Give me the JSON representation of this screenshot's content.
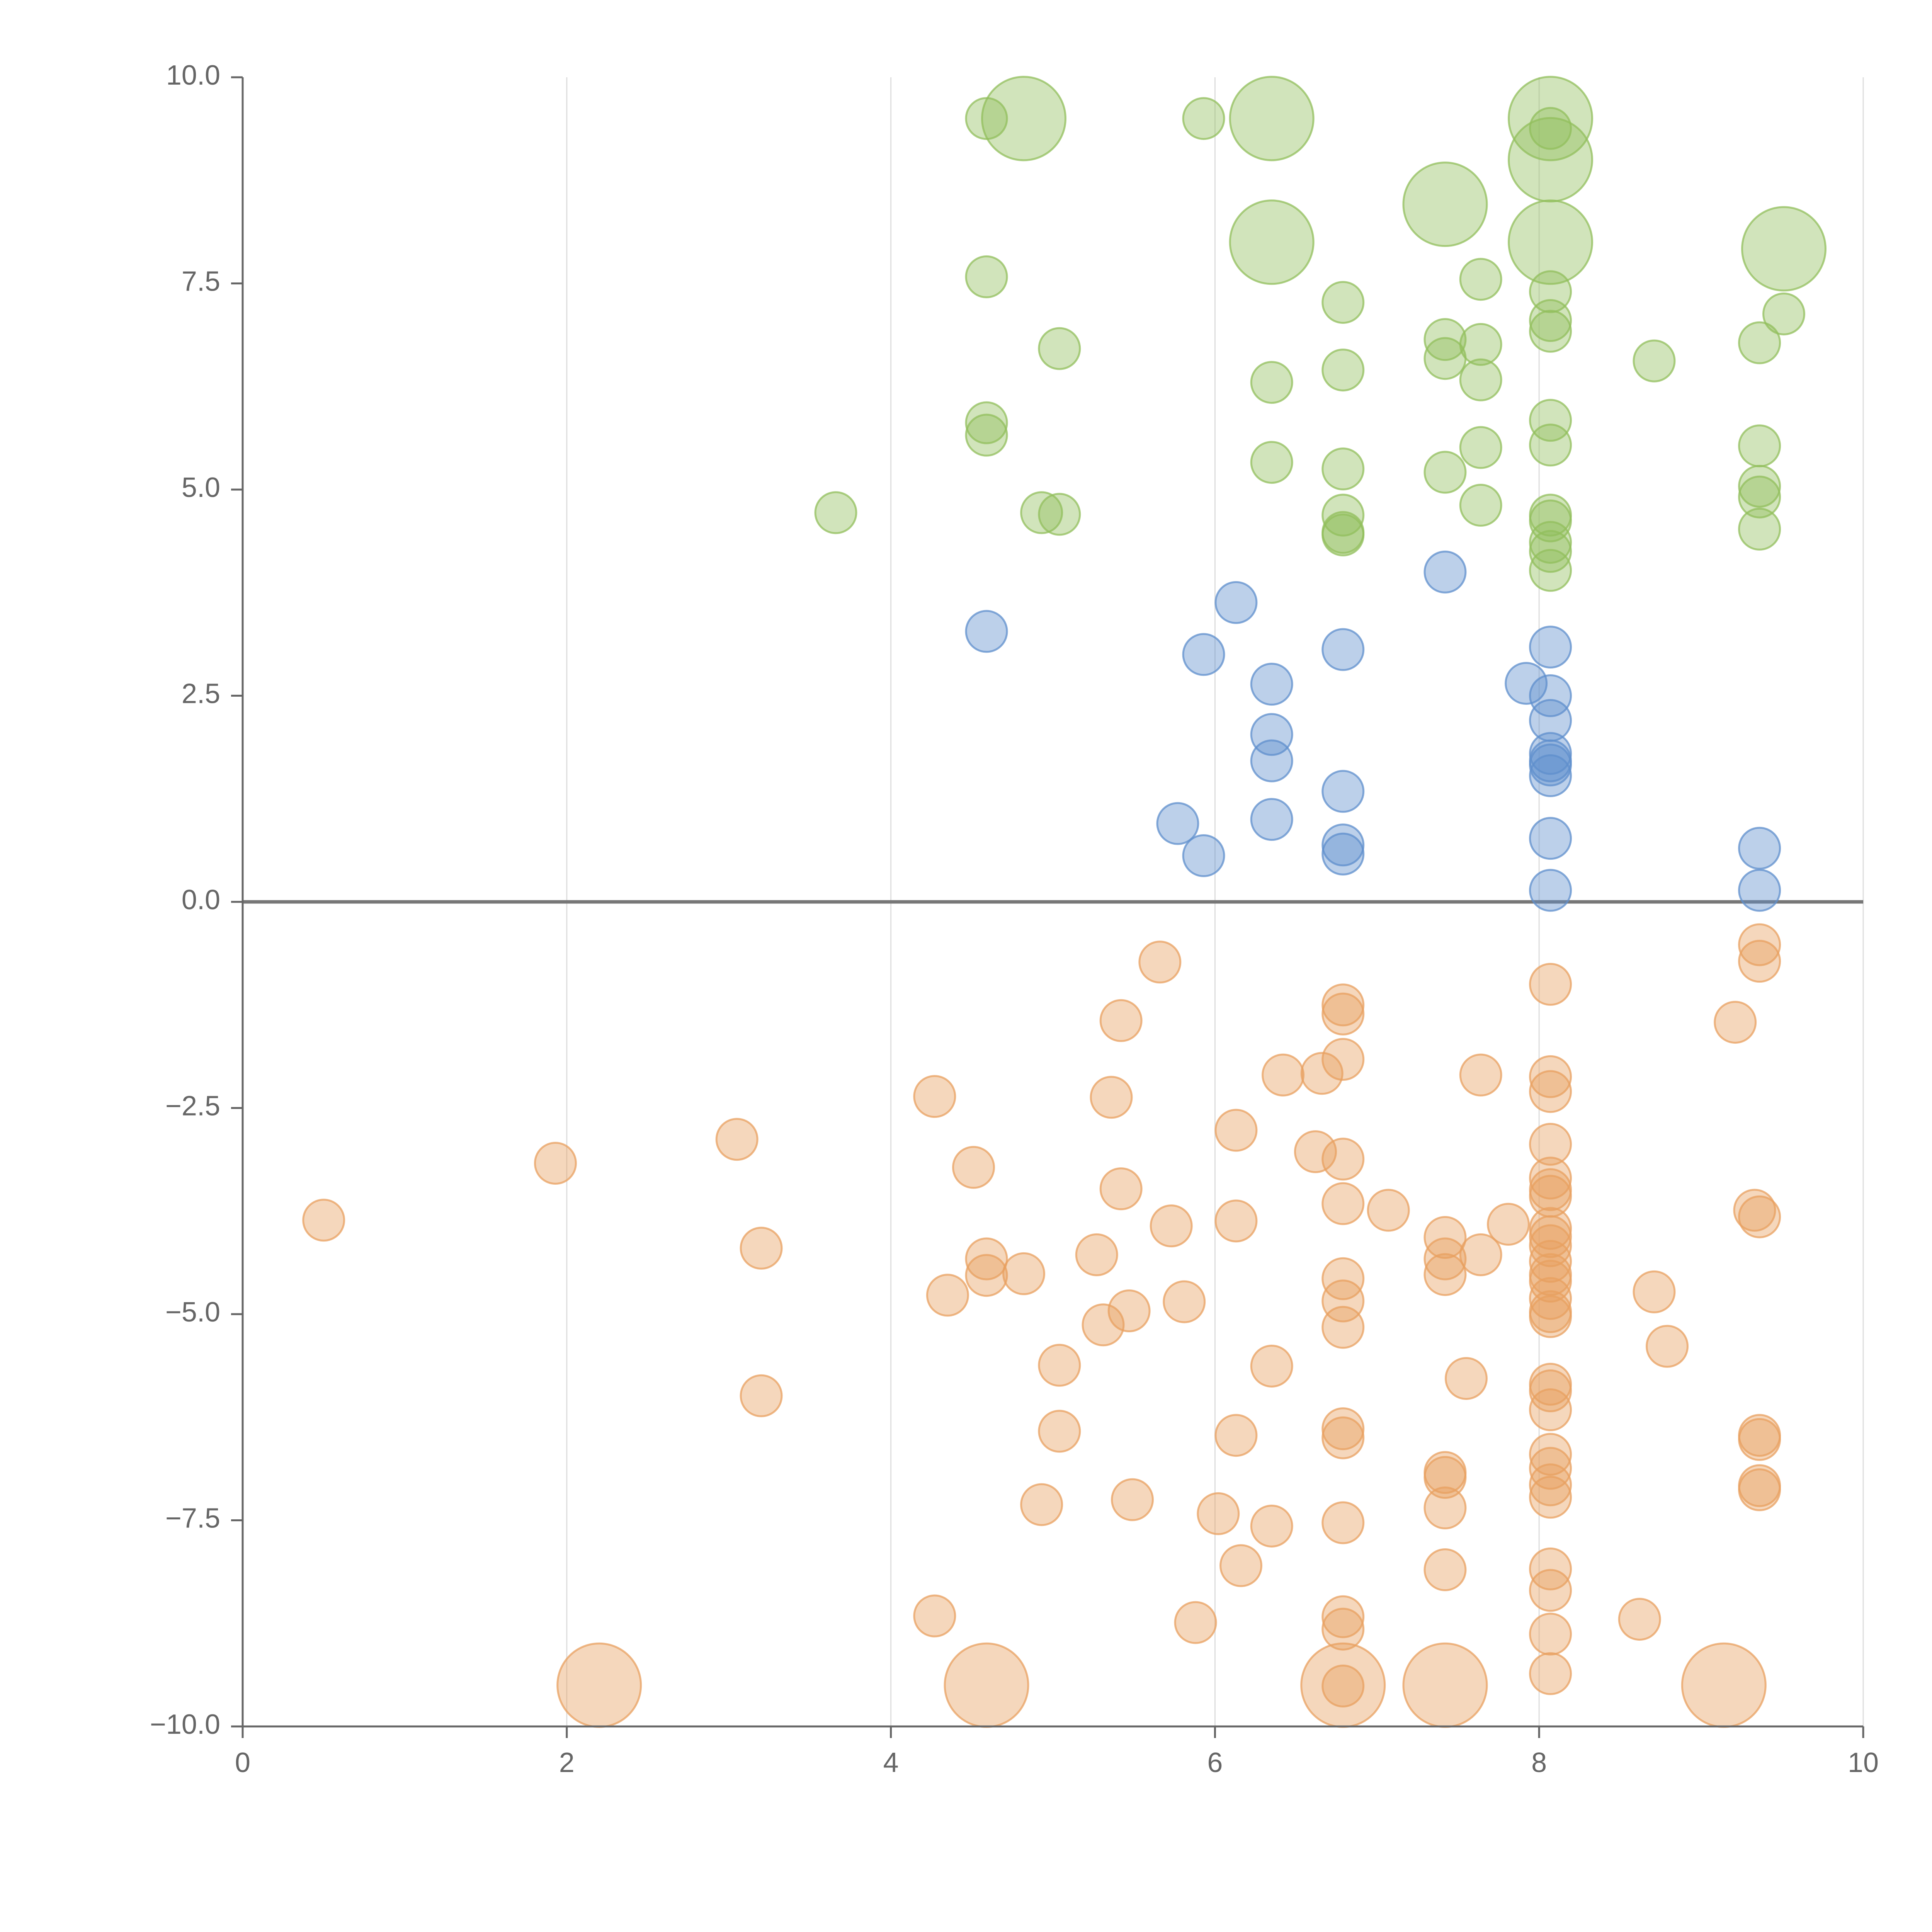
{
  "chart_data": {
    "type": "scatter",
    "title": "",
    "xlabel": "",
    "ylabel": "",
    "xlim": [
      0,
      10
    ],
    "ylim": [
      -10,
      10
    ],
    "x_ticks": [
      0,
      2,
      4,
      6,
      8,
      10
    ],
    "x_tick_labels": [
      "0",
      "2",
      "4",
      "6",
      "8",
      "10"
    ],
    "y_ticks": [
      10,
      7.5,
      5,
      2.5,
      0,
      -2.5,
      -5,
      -7.5,
      -10
    ],
    "y_tick_labels": [
      "10.0",
      "7.5",
      "5.0",
      "2.5",
      "0.0",
      "−2.5",
      "−5.0",
      "−7.5",
      "−10.0"
    ],
    "vertical_grid": true,
    "horizontal_grid": false,
    "zero_line": true,
    "colors": {
      "green": "#91bf5c",
      "blue": "#5f8fcc",
      "orange": "#e8a060",
      "axis": "#666666",
      "zero_line": "#777777",
      "grid": "#dddddd",
      "tick_text": "#666666"
    },
    "series": [
      {
        "name": "green",
        "color": "#91bf5c",
        "points": [
          [
            4.59,
            9.5
          ],
          [
            5.93,
            9.5
          ],
          [
            3.66,
            4.72
          ],
          [
            4.93,
            4.72
          ],
          [
            5.04,
            4.7
          ],
          [
            5.04,
            6.71
          ],
          [
            4.59,
            5.81
          ],
          [
            4.59,
            5.66
          ],
          [
            4.59,
            7.58
          ],
          [
            6.35,
            6.3
          ],
          [
            6.35,
            5.33
          ],
          [
            6.79,
            7.27
          ],
          [
            6.79,
            6.45
          ],
          [
            6.79,
            5.25
          ],
          [
            6.79,
            4.69
          ],
          [
            6.79,
            4.45
          ],
          [
            6.79,
            4.48
          ],
          [
            7.42,
            6.82
          ],
          [
            7.42,
            6.59
          ],
          [
            7.42,
            5.21
          ],
          [
            7.64,
            7.55
          ],
          [
            7.64,
            6.76
          ],
          [
            7.64,
            6.33
          ],
          [
            7.64,
            5.51
          ],
          [
            7.64,
            4.81
          ],
          [
            8.07,
            9.38
          ],
          [
            8.07,
            7.4
          ],
          [
            8.07,
            7.05
          ],
          [
            8.07,
            6.92
          ],
          [
            8.07,
            5.84
          ],
          [
            8.07,
            5.54
          ],
          [
            8.07,
            4.69
          ],
          [
            8.07,
            4.62
          ],
          [
            8.07,
            4.36
          ],
          [
            8.07,
            4.25
          ],
          [
            8.07,
            4.02
          ],
          [
            8.71,
            6.56
          ],
          [
            9.36,
            6.78
          ],
          [
            9.36,
            5.53
          ],
          [
            9.36,
            5.04
          ],
          [
            9.36,
            4.91
          ],
          [
            9.36,
            4.52
          ],
          [
            9.51,
            7.13
          ]
        ]
      },
      {
        "name": "blue",
        "color": "#5f8fcc",
        "points": [
          [
            4.59,
            3.28
          ],
          [
            5.93,
            3.0
          ],
          [
            6.13,
            3.63
          ],
          [
            6.35,
            2.64
          ],
          [
            6.35,
            2.03
          ],
          [
            6.35,
            1.71
          ],
          [
            6.35,
            1.0
          ],
          [
            5.77,
            0.95
          ],
          [
            5.93,
            0.56
          ],
          [
            6.79,
            3.06
          ],
          [
            6.79,
            1.34
          ],
          [
            6.79,
            0.69
          ],
          [
            6.79,
            0.58
          ],
          [
            7.42,
            4.0
          ],
          [
            7.92,
            2.65
          ],
          [
            8.07,
            3.09
          ],
          [
            8.07,
            2.5
          ],
          [
            8.07,
            2.2
          ],
          [
            8.07,
            1.8
          ],
          [
            8.07,
            1.71
          ],
          [
            8.07,
            1.66
          ],
          [
            8.07,
            1.53
          ],
          [
            8.07,
            0.77
          ],
          [
            8.07,
            0.14
          ],
          [
            9.36,
            0.65
          ],
          [
            9.36,
            0.14
          ]
        ]
      },
      {
        "name": "orange",
        "color": "#e8a060",
        "points": [
          [
            0.5,
            -3.86
          ],
          [
            1.93,
            -3.17
          ],
          [
            3.05,
            -2.88
          ],
          [
            3.2,
            -4.2
          ],
          [
            3.2,
            -5.99
          ],
          [
            4.27,
            -2.36
          ],
          [
            4.51,
            -3.22
          ],
          [
            4.35,
            -4.77
          ],
          [
            4.59,
            -4.33
          ],
          [
            4.59,
            -4.53
          ],
          [
            4.82,
            -4.51
          ],
          [
            4.27,
            -8.66
          ],
          [
            4.93,
            -7.31
          ],
          [
            5.04,
            -5.62
          ],
          [
            5.04,
            -6.42
          ],
          [
            5.27,
            -4.28
          ],
          [
            5.31,
            -5.13
          ],
          [
            5.36,
            -2.37
          ],
          [
            5.42,
            -1.44
          ],
          [
            5.42,
            -3.48
          ],
          [
            5.47,
            -4.96
          ],
          [
            5.49,
            -7.25
          ],
          [
            5.66,
            -0.73
          ],
          [
            5.73,
            -3.93
          ],
          [
            5.81,
            -4.85
          ],
          [
            5.88,
            -8.74
          ],
          [
            6.02,
            -7.42
          ],
          [
            6.13,
            -2.77
          ],
          [
            6.13,
            -3.87
          ],
          [
            6.13,
            -6.47
          ],
          [
            6.16,
            -8.05
          ],
          [
            6.35,
            -5.63
          ],
          [
            6.35,
            -7.57
          ],
          [
            6.42,
            -2.1
          ],
          [
            6.62,
            -3.03
          ],
          [
            6.66,
            -2.08
          ],
          [
            6.79,
            -1.25
          ],
          [
            6.79,
            -1.36
          ],
          [
            6.79,
            -1.91
          ],
          [
            6.79,
            -3.12
          ],
          [
            6.79,
            -3.66
          ],
          [
            6.79,
            -4.57
          ],
          [
            6.79,
            -4.84
          ],
          [
            6.79,
            -5.16
          ],
          [
            6.79,
            -6.39
          ],
          [
            6.79,
            -6.5
          ],
          [
            6.79,
            -7.53
          ],
          [
            6.79,
            -8.67
          ],
          [
            6.79,
            -8.82
          ],
          [
            6.79,
            -9.51
          ],
          [
            7.07,
            -3.74
          ],
          [
            7.42,
            -4.07
          ],
          [
            7.42,
            -4.33
          ],
          [
            7.42,
            -4.52
          ],
          [
            7.42,
            -6.92
          ],
          [
            7.42,
            -6.98
          ],
          [
            7.42,
            -7.35
          ],
          [
            7.42,
            -8.1
          ],
          [
            7.55,
            -5.78
          ],
          [
            7.64,
            -2.1
          ],
          [
            7.64,
            -4.28
          ],
          [
            7.81,
            -3.91
          ],
          [
            8.07,
            -1.0
          ],
          [
            8.07,
            -2.12
          ],
          [
            8.07,
            -2.3
          ],
          [
            8.07,
            -2.94
          ],
          [
            8.07,
            -3.35
          ],
          [
            8.07,
            -3.49
          ],
          [
            8.07,
            -3.57
          ],
          [
            8.07,
            -3.96
          ],
          [
            8.07,
            -4.06
          ],
          [
            8.07,
            -4.17
          ],
          [
            8.07,
            -4.36
          ],
          [
            8.07,
            -4.52
          ],
          [
            8.07,
            -4.6
          ],
          [
            8.07,
            -4.81
          ],
          [
            8.07,
            -4.97
          ],
          [
            8.07,
            -5.03
          ],
          [
            8.07,
            -5.85
          ],
          [
            8.07,
            -5.93
          ],
          [
            8.07,
            -6.16
          ],
          [
            8.07,
            -6.7
          ],
          [
            8.07,
            -6.87
          ],
          [
            8.07,
            -7.07
          ],
          [
            8.07,
            -7.22
          ],
          [
            8.07,
            -8.09
          ],
          [
            8.07,
            -8.35
          ],
          [
            8.07,
            -8.88
          ],
          [
            8.07,
            -9.36
          ],
          [
            8.62,
            -8.7
          ],
          [
            8.71,
            -4.73
          ],
          [
            8.79,
            -5.39
          ],
          [
            9.21,
            -1.46
          ],
          [
            9.33,
            -3.74
          ],
          [
            9.36,
            -3.82
          ],
          [
            9.36,
            -0.52
          ],
          [
            9.36,
            -0.72
          ],
          [
            9.36,
            -6.47
          ],
          [
            9.36,
            -6.52
          ],
          [
            9.36,
            -7.08
          ],
          [
            9.36,
            -7.13
          ]
        ]
      }
    ],
    "large_markers": {
      "green": [
        [
          4.82,
          9.5
        ],
        [
          6.35,
          9.5
        ],
        [
          8.07,
          9.5
        ],
        [
          8.07,
          9.0
        ],
        [
          7.42,
          8.46
        ],
        [
          6.35,
          8.0
        ],
        [
          8.07,
          8.0
        ],
        [
          9.51,
          7.92
        ]
      ],
      "orange": [
        [
          2.2,
          -9.5
        ],
        [
          4.59,
          -9.5
        ],
        [
          6.79,
          -9.5
        ],
        [
          7.42,
          -9.5
        ],
        [
          9.14,
          -9.5
        ]
      ]
    }
  }
}
